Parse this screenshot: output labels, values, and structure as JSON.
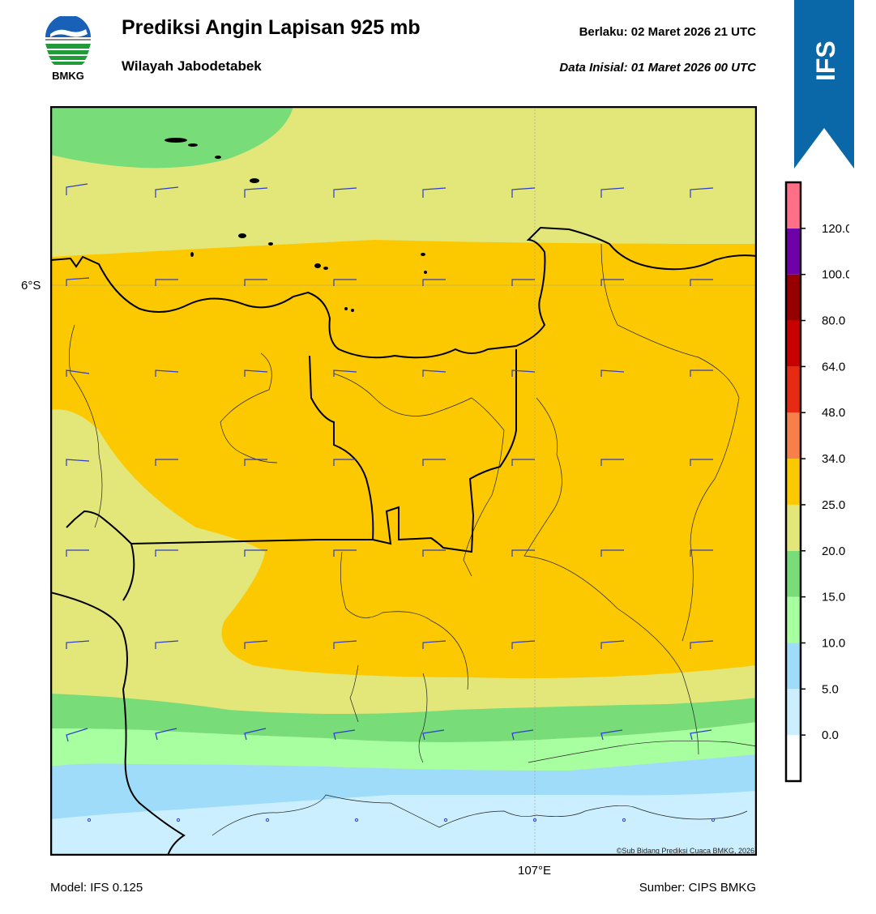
{
  "header": {
    "title": "Prediksi Angin Lapisan 925 mb",
    "subtitle": "Wilayah Jabodetabek",
    "valid_label": "Berlaku:  02 Maret 2026 21 UTC",
    "init_label": "Data Inisial:  01 Maret 2026 00 UTC"
  },
  "logo": {
    "text": "BMKG",
    "icon": "bmkg-logo"
  },
  "badge": {
    "text": "IFS",
    "color": "#0a68a8"
  },
  "axes": {
    "lat_label": "6°S",
    "lon_label": "107°E"
  },
  "footer": {
    "model": "Model: IFS 0.125",
    "source": "Sumber: CIPS BMKG"
  },
  "copyright": "©Sub Bidang Prediksi Cuaca BMKG, 2026",
  "colorbar": {
    "labels": [
      "0.0",
      "5.0",
      "10.0",
      "15.0",
      "20.0",
      "25.0",
      "34.0",
      "48.0",
      "64.0",
      "80.0",
      "100.0",
      "120.0"
    ],
    "colors": [
      "#ffffff",
      "#ccefff",
      "#9edcfa",
      "#a8ffa0",
      "#78dc78",
      "#e3e679",
      "#fcc900",
      "#f67f4a",
      "#e62b12",
      "#c80000",
      "#960000",
      "#6f00a8",
      "#ff6f88"
    ]
  },
  "legend_colors": {
    "band_green": "#78dc78",
    "band_lightgreen": "#a8ffa0",
    "band_blue": "#9edcfa",
    "band_paleblue": "#ccefff",
    "band_yellow": "#e3e679",
    "band_orange": "#fcc900",
    "barb": "#2b3ccf"
  }
}
